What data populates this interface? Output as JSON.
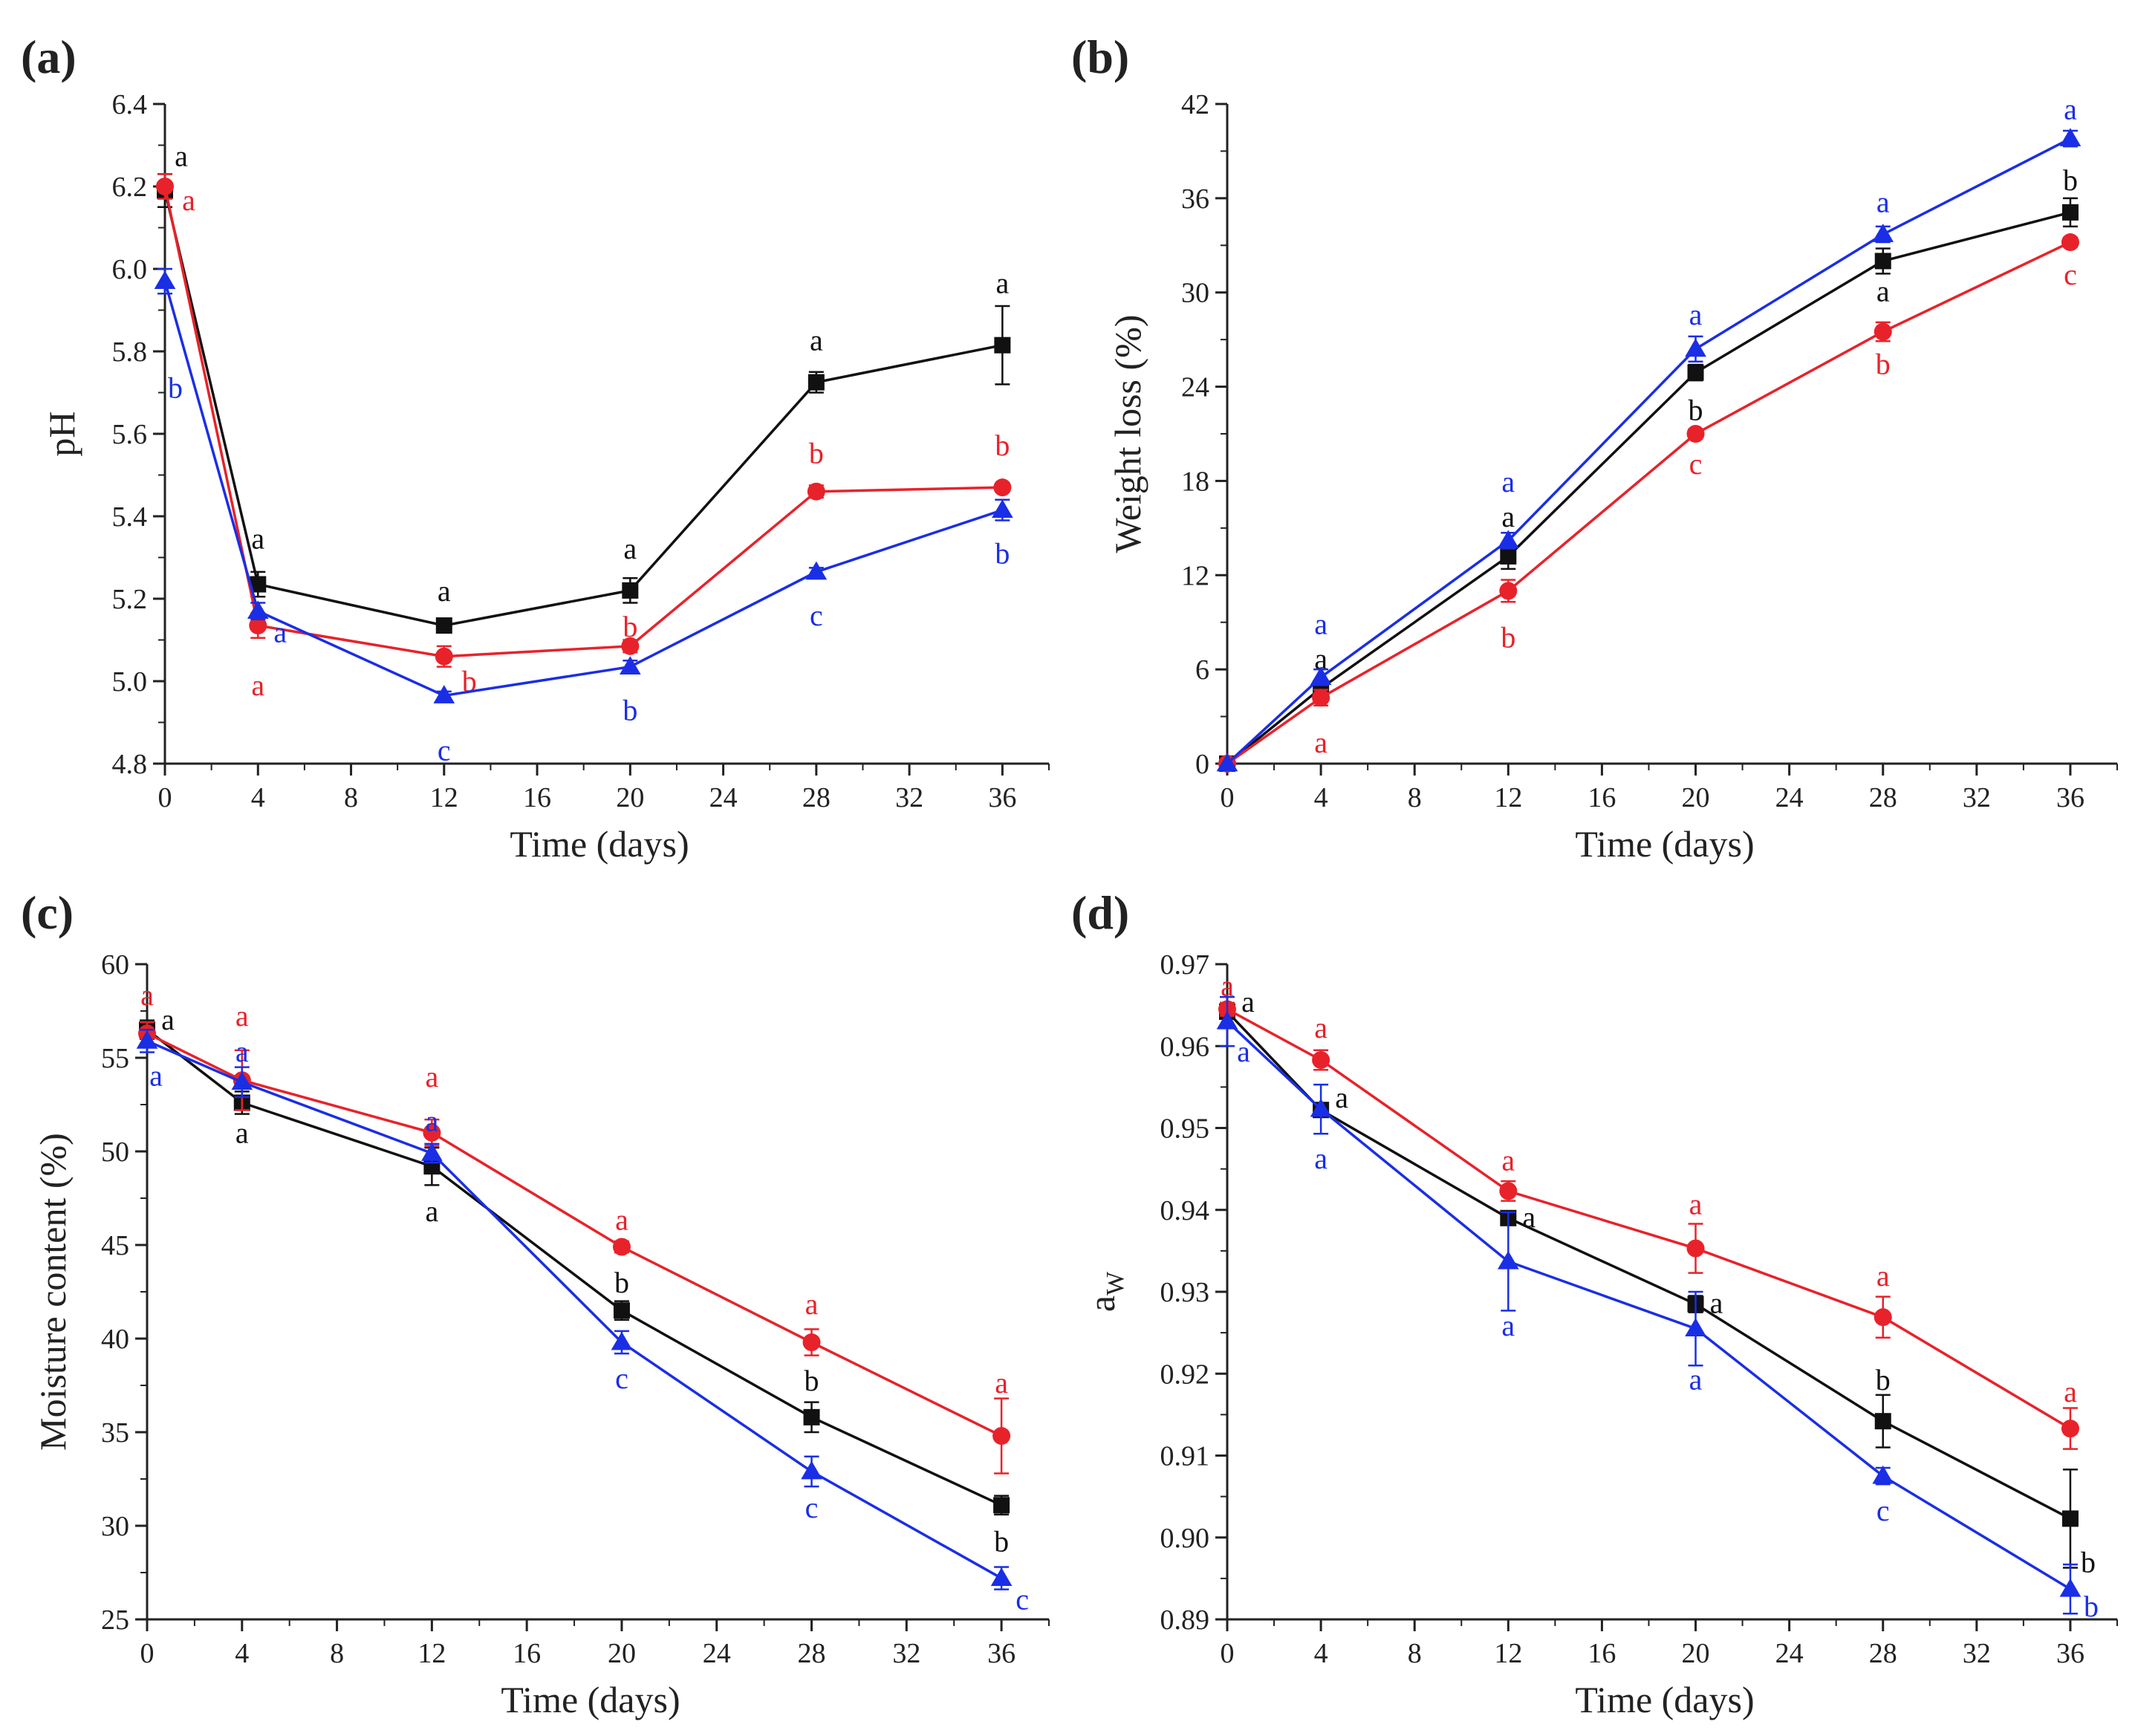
{
  "colors": {
    "black": "#111111",
    "red": "#e8222a",
    "blue": "#1a2ee6",
    "axis": "#222222"
  },
  "chart_data": [
    {
      "type": "line",
      "panel_label": "(a)",
      "xlabel": "Time (days)",
      "ylabel": "pH",
      "xlim": [
        0,
        38
      ],
      "ylim": [
        4.8,
        6.4
      ],
      "xticks": [
        0,
        4,
        8,
        12,
        16,
        20,
        24,
        28,
        32,
        36
      ],
      "xtick_labels": [
        "0",
        "4",
        "8",
        "12",
        "16",
        "20",
        "24",
        "28",
        "32",
        "36"
      ],
      "yticks": [
        4.8,
        5.0,
        5.2,
        5.4,
        5.6,
        5.8,
        6.0,
        6.2,
        6.4
      ],
      "ytick_labels": [
        "4.8",
        "5.0",
        "5.2",
        "5.4",
        "5.6",
        "5.8",
        "6.0",
        "6.2",
        "6.4"
      ],
      "x": [
        0,
        4,
        12,
        20,
        28,
        36
      ],
      "series": [
        {
          "name": "black",
          "marker": "square",
          "color": "#111111",
          "values": [
            6.19,
            5.235,
            5.135,
            5.22,
            5.725,
            5.815
          ],
          "errors": [
            0.04,
            0.03,
            0.01,
            0.03,
            0.025,
            0.095
          ],
          "letters": [
            "a",
            "a",
            "a",
            "a",
            "a",
            "a"
          ]
        },
        {
          "name": "red",
          "marker": "circle",
          "color": "#e8222a",
          "values": [
            6.2,
            5.135,
            5.06,
            5.085,
            5.46,
            5.47
          ],
          "errors": [
            0.03,
            0.03,
            0.025,
            0.015,
            0.015,
            0.01
          ],
          "letters": [
            "a",
            "a",
            "b",
            "b",
            "b",
            "b"
          ]
        },
        {
          "name": "blue",
          "marker": "triangle",
          "color": "#1a2ee6",
          "values": [
            5.97,
            5.17,
            4.965,
            5.035,
            5.265,
            5.415
          ],
          "errors": [
            0.03,
            0.02,
            0.01,
            0.015,
            0.01,
            0.025
          ],
          "letters": [
            "b",
            "a",
            "c",
            "b",
            "c",
            "b"
          ]
        }
      ]
    },
    {
      "type": "line",
      "panel_label": "(b)",
      "xlabel": "Time (days)",
      "ylabel": "Weight loss (%)",
      "xlim": [
        0,
        38
      ],
      "ylim": [
        0,
        42
      ],
      "xticks": [
        0,
        4,
        8,
        12,
        16,
        20,
        24,
        28,
        32,
        36
      ],
      "xtick_labels": [
        "0",
        "4",
        "8",
        "12",
        "16",
        "20",
        "24",
        "28",
        "32",
        "36"
      ],
      "yticks": [
        0,
        6,
        12,
        18,
        24,
        30,
        36,
        42
      ],
      "ytick_labels": [
        "0",
        "6",
        "12",
        "18",
        "24",
        "30",
        "36",
        "42"
      ],
      "x": [
        0,
        4,
        12,
        20,
        28,
        36
      ],
      "series": [
        {
          "name": "black",
          "marker": "square",
          "color": "#111111",
          "values": [
            0,
            4.8,
            13.2,
            24.9,
            32.0,
            35.1
          ],
          "errors": [
            0,
            0.5,
            0.8,
            0.5,
            0.8,
            0.9
          ],
          "letters": [
            "",
            "a",
            "a",
            "b",
            "a",
            "b"
          ]
        },
        {
          "name": "red",
          "marker": "circle",
          "color": "#e8222a",
          "values": [
            0,
            4.2,
            11.0,
            21.0,
            27.5,
            33.2
          ],
          "errors": [
            0,
            0.5,
            0.7,
            0.3,
            0.6,
            0.3
          ],
          "letters": [
            "",
            "a",
            "b",
            "c",
            "b",
            "c"
          ]
        },
        {
          "name": "blue",
          "marker": "triangle",
          "color": "#1a2ee6",
          "values": [
            0,
            5.5,
            14.2,
            26.4,
            33.7,
            39.8
          ],
          "errors": [
            0,
            0.5,
            0.5,
            0.8,
            0.5,
            0.5
          ],
          "letters": [
            "",
            "a",
            "a",
            "a",
            "a",
            "a"
          ]
        }
      ]
    },
    {
      "type": "line",
      "panel_label": "(c)",
      "xlabel": "Time (days)",
      "ylabel": "Moisture content (%)",
      "xlim": [
        0,
        38
      ],
      "ylim": [
        25,
        60
      ],
      "xticks": [
        0,
        4,
        8,
        12,
        16,
        20,
        24,
        28,
        32,
        36
      ],
      "xtick_labels": [
        "0",
        "4",
        "8",
        "12",
        "16",
        "20",
        "24",
        "28",
        "32",
        "36"
      ],
      "yticks": [
        25,
        30,
        35,
        40,
        45,
        50,
        55,
        60
      ],
      "ytick_labels": [
        "25",
        "30",
        "35",
        "40",
        "45",
        "50",
        "55",
        "60"
      ],
      "x": [
        0,
        4,
        12,
        20,
        28,
        36
      ],
      "series": [
        {
          "name": "black",
          "marker": "square",
          "color": "#111111",
          "values": [
            56.5,
            52.6,
            49.2,
            41.5,
            35.8,
            31.1
          ],
          "errors": [
            0.5,
            0.6,
            1.0,
            0.5,
            0.8,
            0.5
          ],
          "letters": [
            "a",
            "a",
            "a",
            "b",
            "b",
            "b"
          ]
        },
        {
          "name": "red",
          "marker": "circle",
          "color": "#e8222a",
          "values": [
            56.3,
            53.8,
            51.0,
            44.9,
            39.8,
            34.8
          ],
          "errors": [
            0.6,
            1.6,
            0.7,
            0.3,
            0.7,
            2.0
          ],
          "letters": [
            "a",
            "a",
            "a",
            "a",
            "a",
            "a"
          ]
        },
        {
          "name": "blue",
          "marker": "triangle",
          "color": "#1a2ee6",
          "values": [
            55.9,
            53.7,
            49.9,
            39.8,
            32.9,
            27.2
          ],
          "errors": [
            0.6,
            0.8,
            0.5,
            0.6,
            0.8,
            0.6
          ],
          "letters": [
            "a",
            "a",
            "a",
            "c",
            "c",
            "c"
          ]
        }
      ]
    },
    {
      "type": "line",
      "panel_label": "(d)",
      "xlabel": "Time (days)",
      "ylabel": "a",
      "ylabel_subscript": "W",
      "xlim": [
        0,
        38
      ],
      "ylim": [
        0.89,
        0.97
      ],
      "xticks": [
        0,
        4,
        8,
        12,
        16,
        20,
        24,
        28,
        32,
        36
      ],
      "xtick_labels": [
        "0",
        "4",
        "8",
        "12",
        "16",
        "20",
        "24",
        "28",
        "32",
        "36"
      ],
      "yticks": [
        0.89,
        0.9,
        0.91,
        0.92,
        0.93,
        0.94,
        0.95,
        0.96,
        0.97
      ],
      "ytick_labels": [
        "0.89",
        "0.90",
        "0.91",
        "0.92",
        "0.93",
        "0.94",
        "0.95",
        "0.96",
        "0.97"
      ],
      "x": [
        0,
        4,
        12,
        20,
        28,
        36
      ],
      "series": [
        {
          "name": "black",
          "marker": "square",
          "color": "#111111",
          "values": [
            0.9642,
            0.9522,
            0.939,
            0.9285,
            0.9142,
            0.9023
          ],
          "errors": [
            0.0008,
            0.0008,
            0.0008,
            0.001,
            0.0032,
            0.006
          ],
          "letters": [
            "a",
            "a",
            "a",
            "a",
            "b",
            "b"
          ]
        },
        {
          "name": "red",
          "marker": "circle",
          "color": "#e8222a",
          "values": [
            0.9645,
            0.9583,
            0.9423,
            0.9353,
            0.9269,
            0.9133
          ],
          "errors": [
            0.0008,
            0.0012,
            0.0012,
            0.003,
            0.0025,
            0.0025
          ],
          "letters": [
            "a",
            "a",
            "a",
            "a",
            "a",
            "a"
          ]
        },
        {
          "name": "blue",
          "marker": "triangle",
          "color": "#1a2ee6",
          "values": [
            0.963,
            0.9523,
            0.9337,
            0.9255,
            0.9075,
            0.8937
          ],
          "errors": [
            0.003,
            0.003,
            0.006,
            0.0045,
            0.001,
            0.003
          ],
          "letters": [
            "a",
            "a",
            "a",
            "a",
            "c",
            "b"
          ]
        }
      ]
    }
  ]
}
